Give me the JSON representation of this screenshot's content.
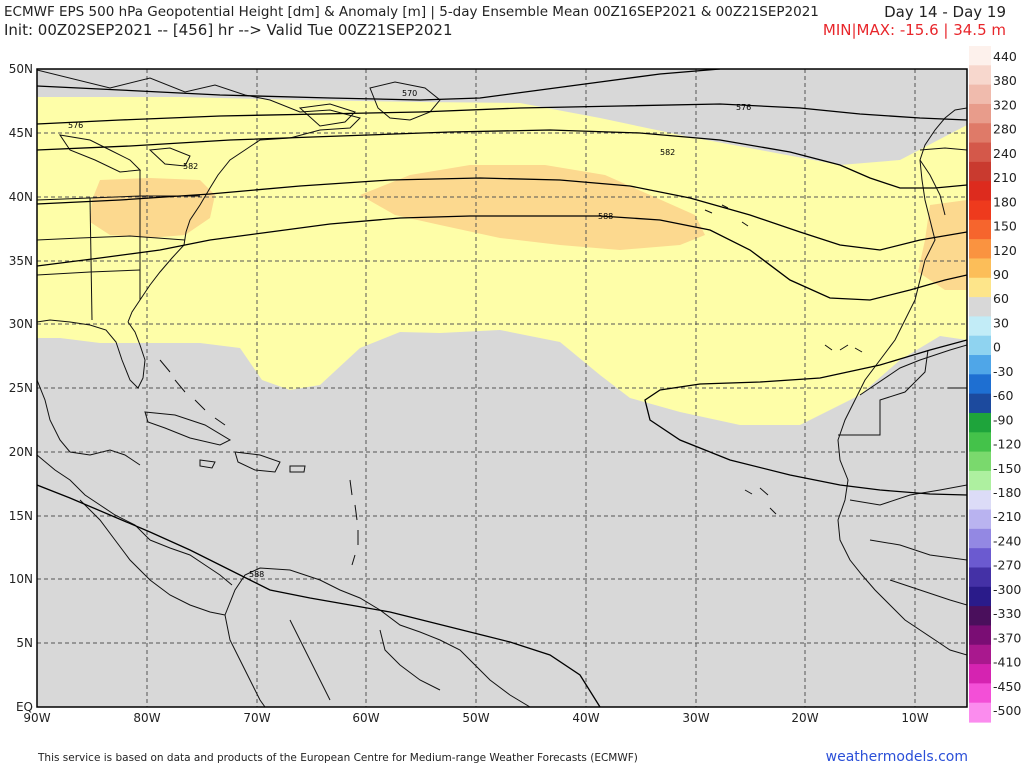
{
  "header": {
    "title": "ECMWF EPS 500 hPa Geopotential Height [dm] & Anomaly [m] | 5-day Ensemble Mean 00Z16SEP2021 & 00Z21SEP2021",
    "init_line": "Init: 00Z02SEP2021 -- [456] hr --> Valid Tue 00Z21SEP2021",
    "day_range": "Day 14 - Day 19",
    "minmax": "MIN|MAX: -15.6 | 34.5 m"
  },
  "map": {
    "lat_labels": [
      "50N",
      "45N",
      "40N",
      "35N",
      "30N",
      "25N",
      "20N",
      "15N",
      "10N",
      "5N",
      "EQ"
    ],
    "lon_labels": [
      "90W",
      "80W",
      "70W",
      "60W",
      "50W",
      "40W",
      "30W",
      "20W",
      "10W"
    ],
    "contour_labels": [
      "570",
      "576",
      "582",
      "588",
      "576",
      "582",
      "588"
    ],
    "colors": {
      "neutral": "#d8d8d8",
      "anom_30": "#fefea8",
      "anom_60": "#fcd98f",
      "land_outline": "#000000"
    }
  },
  "legend": {
    "ticks": [
      "440",
      "380",
      "320",
      "280",
      "240",
      "210",
      "180",
      "150",
      "120",
      "90",
      "60",
      "30",
      "0",
      "-30",
      "-60",
      "-90",
      "-120",
      "-150",
      "-180",
      "-210",
      "-240",
      "-270",
      "-300",
      "-330",
      "-370",
      "-410",
      "-450",
      "-500"
    ],
    "colors": [
      "#fdf1ec",
      "#f7d7cd",
      "#f0bbad",
      "#e89c8b",
      "#df7a68",
      "#d4584a",
      "#c93a2f",
      "#dd2b1e",
      "#ee3a1d",
      "#f6652d",
      "#fa9340",
      "#fcbe59",
      "#fde58a",
      "#d8d8d8",
      "#c2ecf7",
      "#8fd3f0",
      "#4fa6e8",
      "#1e6fd2",
      "#1c4a9e",
      "#1ea43b",
      "#44c24a",
      "#7ad96d",
      "#aef0a0",
      "#dcdcf7",
      "#b9b3f0",
      "#9388e3",
      "#6b5ad0",
      "#4431a6",
      "#2a1b8a",
      "#4a0f5c",
      "#7a0d74",
      "#a9188e",
      "#d523b1",
      "#f34fd7",
      "#fb8cee"
    ]
  },
  "footer": {
    "credit": "This service is based on data and products of the European Centre for Medium-range Weather Forecasts (ECMWF)",
    "brand": "weathermodels.com"
  }
}
